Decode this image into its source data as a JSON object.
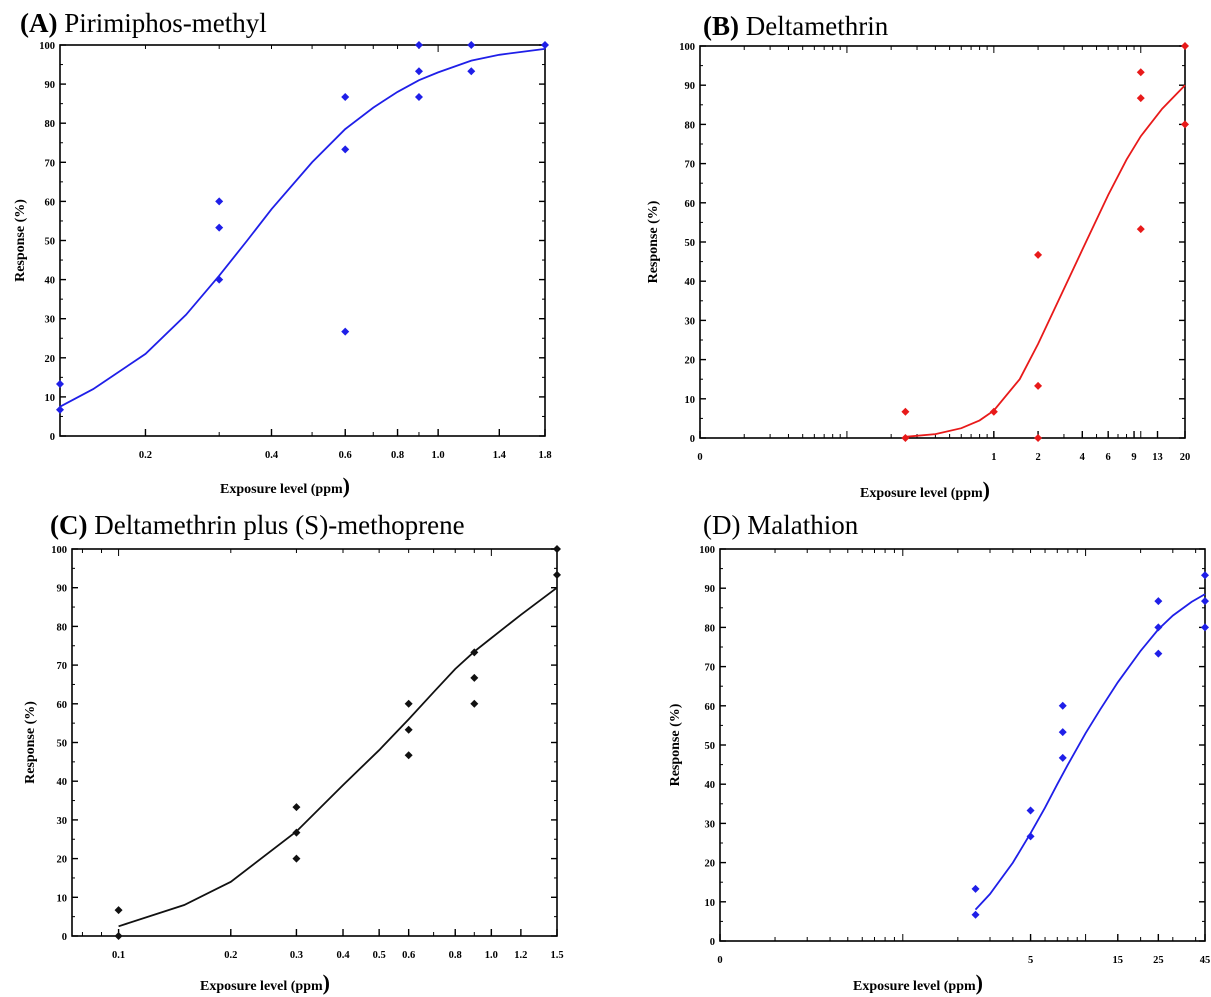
{
  "chart_data": [
    {
      "type": "scatter",
      "panel_tag": "(A)",
      "title": "Pirimiphos-methyl",
      "xlabel": "Exposure level (ppm",
      "xlabel_paren": ")",
      "ylabel": "Response (%)",
      "xscale": "log",
      "xlim": [
        0.125,
        1.8
      ],
      "ylim": [
        0,
        100
      ],
      "yticks": [
        "0",
        "10",
        "20",
        "30",
        "40",
        "50",
        "60",
        "70",
        "80",
        "90",
        "100"
      ],
      "xtick_labels": [
        "0.2",
        "0.4",
        "0.6",
        "0.8",
        "1.0",
        "1.4",
        "1.8"
      ],
      "color": "#1f1fe8",
      "grid": false,
      "series": [
        {
          "x": [
            0.125,
            0.125,
            0.3,
            0.3,
            0.3,
            0.6,
            0.6,
            0.6,
            0.9,
            0.9,
            0.9,
            1.2,
            1.2,
            1.8
          ],
          "y": [
            13.3,
            6.7,
            60,
            53.3,
            40,
            86.7,
            73.3,
            26.7,
            100,
            93.3,
            86.7,
            100,
            93.3,
            100
          ]
        }
      ],
      "fit_curve": {
        "x": [
          0.125,
          0.15,
          0.2,
          0.25,
          0.3,
          0.35,
          0.4,
          0.5,
          0.6,
          0.7,
          0.8,
          0.9,
          1.0,
          1.2,
          1.4,
          1.6,
          1.8
        ],
        "y": [
          7.5,
          12,
          21,
          31,
          41,
          50,
          58,
          70,
          78.5,
          84,
          88,
          91,
          93,
          96,
          97.5,
          98.3,
          99
        ]
      }
    },
    {
      "type": "scatter",
      "panel_tag": "(B)",
      "title": "Deltamethrin",
      "xlabel": "Exposure level (ppm",
      "xlabel_paren": ")",
      "ylabel": "Response (%)",
      "xscale": "log",
      "xlim": [
        0.01,
        20
      ],
      "ylim": [
        0,
        100
      ],
      "yticks": [
        "0",
        "10",
        "20",
        "30",
        "40",
        "50",
        "60",
        "70",
        "80",
        "90",
        "100"
      ],
      "xtick_labels": [
        "0",
        "1",
        "2",
        "4",
        "6",
        "9",
        "13",
        "20"
      ],
      "color": "#e81a1a",
      "grid": false,
      "series": [
        {
          "x": [
            0.25,
            0.25,
            1,
            2,
            2,
            2,
            10,
            10,
            10,
            20,
            20
          ],
          "y": [
            6.7,
            0,
            6.7,
            46.7,
            13.3,
            0,
            93.3,
            86.7,
            53.3,
            100,
            80
          ]
        }
      ],
      "fit_curve": {
        "x": [
          0.25,
          0.4,
          0.6,
          0.8,
          1.0,
          1.5,
          2,
          3,
          4,
          6,
          8,
          10,
          14,
          20
        ],
        "y": [
          0.3,
          1,
          2.5,
          4.5,
          7,
          15,
          24,
          38,
          48,
          62,
          71,
          77,
          84,
          90
        ]
      }
    },
    {
      "type": "scatter",
      "panel_tag": "(C)",
      "title": "Deltamethrin plus (S)-methoprene",
      "xlabel": "Exposure level (ppm",
      "xlabel_paren": ")",
      "ylabel": "Response (%)",
      "xscale": "log",
      "xlim": [
        0.075,
        1.5
      ],
      "ylim": [
        0,
        100
      ],
      "yticks": [
        "0",
        "10",
        "20",
        "30",
        "40",
        "50",
        "60",
        "70",
        "80",
        "90",
        "100"
      ],
      "xtick_labels": [
        "0.1",
        "0.2",
        "0.3",
        "0.4",
        "0.5",
        "0.6",
        "0.8",
        "1.0",
        "1.2",
        "1.5"
      ],
      "color": "#111111",
      "grid": false,
      "series": [
        {
          "x": [
            0.1,
            0.1,
            0.3,
            0.3,
            0.3,
            0.6,
            0.6,
            0.6,
            0.9,
            0.9,
            0.9,
            1.5,
            1.5
          ],
          "y": [
            6.7,
            0,
            33.3,
            26.7,
            20,
            60,
            53.3,
            46.7,
            73.3,
            66.7,
            60,
            100,
            93.3
          ]
        }
      ],
      "fit_curve": {
        "x": [
          0.1,
          0.15,
          0.2,
          0.3,
          0.4,
          0.5,
          0.6,
          0.7,
          0.8,
          0.9,
          1.0,
          1.2,
          1.5
        ],
        "y": [
          2.5,
          8,
          14,
          27,
          39,
          48,
          56,
          63,
          69,
          73.5,
          77,
          83,
          90
        ]
      }
    },
    {
      "type": "scatter",
      "panel_tag": "",
      "title": "(D) Malathion",
      "xlabel": "Exposure level (ppm",
      "xlabel_paren": ")",
      "ylabel": "Response (%)",
      "xscale": "log",
      "xlim": [
        0.1,
        45
      ],
      "ylim": [
        0,
        100
      ],
      "yticks": [
        "0",
        "10",
        "20",
        "30",
        "40",
        "50",
        "60",
        "70",
        "80",
        "90",
        "100"
      ],
      "xtick_labels": [
        "0",
        "5",
        "15",
        "25",
        "45"
      ],
      "color": "#1f1fe8",
      "grid": false,
      "series": [
        {
          "x": [
            2.5,
            2.5,
            5,
            5,
            7.5,
            7.5,
            7.5,
            25,
            25,
            25,
            45,
            45,
            45
          ],
          "y": [
            13.3,
            6.7,
            33.3,
            26.7,
            60,
            53.3,
            46.7,
            86.7,
            80,
            73.3,
            93.3,
            86.7,
            80
          ]
        }
      ],
      "fit_curve": {
        "x": [
          2.5,
          3,
          4,
          5,
          6,
          7,
          8,
          10,
          12,
          15,
          20,
          25,
          30,
          38,
          45
        ],
        "y": [
          8,
          12,
          20,
          27.5,
          34,
          40,
          45,
          53,
          59,
          66,
          74,
          79.5,
          83,
          86.5,
          88.5
        ]
      }
    }
  ]
}
